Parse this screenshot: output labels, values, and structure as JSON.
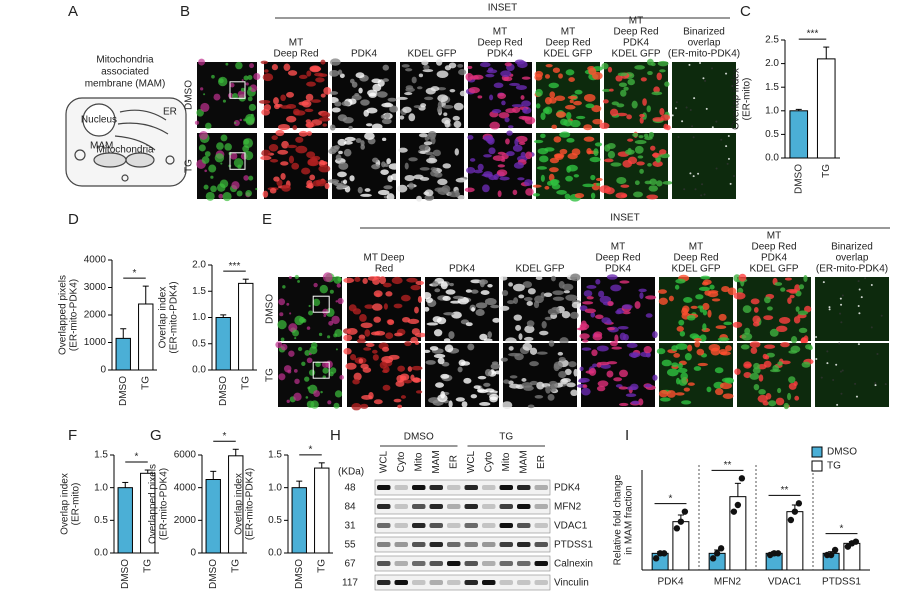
{
  "panels": {
    "a": {
      "label": "A",
      "title": [
        "Mitochondria",
        "associated",
        "membrane (MAM)"
      ],
      "nucleus": "Nucleus",
      "er": "ER",
      "mito": "Mitochondria",
      "mam": "MAM"
    },
    "b": {
      "label": "B",
      "header": "INSET",
      "rows": [
        "DMSO",
        "TG"
      ],
      "columns": [
        [
          {
            "text": "MT",
            "color": "#e8302a"
          },
          {
            "text": "Deep Red",
            "color": "#e8302a"
          }
        ],
        [
          {
            "text": "PDK4",
            "color": "#3a3aa8"
          }
        ],
        [
          {
            "text": "KDEL GFP",
            "color": "#2fae4a"
          }
        ],
        [
          {
            "text": "MT",
            "color": "#e8302a"
          },
          {
            "text": "Deep Red",
            "color": "#e8302a"
          },
          {
            "text": "PDK4",
            "color": "#3a3aa8"
          }
        ],
        [
          {
            "text": "MT",
            "color": "#e8302a"
          },
          {
            "text": "Deep Red",
            "color": "#e8302a"
          },
          {
            "text": "KDEL GFP",
            "color": "#2fae4a"
          }
        ],
        [
          {
            "text": "MT",
            "color": "#e8302a"
          },
          {
            "text": "Deep Red",
            "color": "#e8302a"
          },
          {
            "text": "PDK4",
            "color": "#3a3aa8"
          },
          {
            "text": "KDEL GFP",
            "color": "#2fae4a"
          }
        ],
        [
          {
            "text": "Binarized",
            "color": "#222222"
          },
          {
            "text": "overlap",
            "color": "#222222"
          },
          {
            "text": "(ER-mito-PDK4)",
            "color": "#222222"
          }
        ]
      ]
    },
    "e": {
      "label": "E",
      "header": "INSET",
      "rows": [
        "DMSO",
        "TG"
      ],
      "columns": [
        [
          {
            "text": "MT Deep",
            "color": "#e8302a"
          },
          {
            "text": "Red",
            "color": "#e8302a"
          }
        ],
        [
          {
            "text": "PDK4",
            "color": "#3a3aa8"
          }
        ],
        [
          {
            "text": "KDEL GFP",
            "color": "#2fae4a"
          }
        ],
        [
          {
            "text": "MT",
            "color": "#e8302a"
          },
          {
            "text": "Deep Red",
            "color": "#e8302a"
          },
          {
            "text": "PDK4",
            "color": "#3a3aa8"
          }
        ],
        [
          {
            "text": "MT",
            "color": "#e8302a"
          },
          {
            "text": "Deep Red",
            "color": "#e8302a"
          },
          {
            "text": "KDEL GFP",
            "color": "#2fae4a"
          }
        ],
        [
          {
            "text": "MT",
            "color": "#e8302a"
          },
          {
            "text": "Deep Red",
            "color": "#e8302a"
          },
          {
            "text": "PDK4",
            "color": "#3a3aa8"
          },
          {
            "text": "KDEL GFP",
            "color": "#2fae4a"
          }
        ],
        [
          {
            "text": "Binarized",
            "color": "#222222"
          },
          {
            "text": "overlap",
            "color": "#222222"
          },
          {
            "text": "(ER-mito-PDK4)",
            "color": "#222222"
          }
        ]
      ]
    },
    "h": {
      "label": "H",
      "groups": [
        "DMSO",
        "TG"
      ],
      "unit": "(KDa)",
      "lanes": [
        "WCL",
        "Cyto",
        "Mito",
        "MAM",
        "ER",
        "WCL",
        "Cyto",
        "Mito",
        "MAM",
        "ER"
      ],
      "rows": [
        {
          "mw": "48",
          "protein": "PDK4"
        },
        {
          "mw": "84",
          "protein": "MFN2"
        },
        {
          "mw": "31",
          "protein": "VDAC1"
        },
        {
          "mw": "55",
          "protein": "PTDSS1"
        },
        {
          "mw": "67",
          "protein": "Calnexin"
        },
        {
          "mw": "117",
          "protein": "Vinculin"
        }
      ]
    },
    "labels": {
      "c": "C",
      "d": "D",
      "f": "F",
      "g": "G",
      "i": "I"
    }
  },
  "chart_data": [
    {
      "type": "bar",
      "ylabel": [
        "Overlap index",
        "(ER-mito)"
      ],
      "categories": [
        "DMSO",
        "TG"
      ],
      "values": [
        1.0,
        2.1
      ],
      "errors": [
        0.03,
        0.25
      ],
      "colors": [
        "#4bafd6",
        "#ffffff"
      ],
      "ylim": [
        0,
        2.5
      ],
      "yticks": [
        {
          "value": 0,
          "label": "0.0"
        },
        0.5,
        {
          "value": 1,
          "label": "1.0"
        },
        1.5,
        {
          "value": 2,
          "label": "2.0"
        },
        2.5
      ],
      "significance": "***"
    },
    {
      "type": "bar",
      "ylabel": [
        "Overlapped pixels",
        "(ER-mito-PDK4)"
      ],
      "categories": [
        "DMSO",
        "TG"
      ],
      "values": [
        1150,
        2400
      ],
      "errors": [
        350,
        650
      ],
      "colors": [
        "#4bafd6",
        "#ffffff"
      ],
      "ylim": [
        0,
        4000
      ],
      "yticks": [
        0,
        1000,
        2000,
        3000,
        4000
      ],
      "significance": "*"
    },
    {
      "type": "bar",
      "ylabel": [
        "Overlap index",
        "(ER-mito-PDK4)"
      ],
      "categories": [
        "DMSO",
        "TG"
      ],
      "values": [
        1.0,
        1.65
      ],
      "errors": [
        0.05,
        0.08
      ],
      "colors": [
        "#4bafd6",
        "#ffffff"
      ],
      "ylim": [
        0,
        2
      ],
      "yticks": [
        {
          "value": 0,
          "label": "0.0"
        },
        0.5,
        {
          "value": 1,
          "label": "1.0"
        },
        1.5,
        {
          "value": 2,
          "label": "2.0"
        }
      ],
      "significance": "***"
    },
    {
      "type": "bar",
      "ylabel": [
        "Overlap index",
        "(ER-mito)"
      ],
      "categories": [
        "DMSO",
        "TG"
      ],
      "values": [
        1.0,
        1.22
      ],
      "errors": [
        0.08,
        0.05
      ],
      "colors": [
        "#4bafd6",
        "#ffffff"
      ],
      "ylim": [
        0,
        1.5
      ],
      "yticks": [
        {
          "value": 0,
          "label": "0.0"
        },
        0.5,
        {
          "value": 1,
          "label": "1.0"
        },
        1.5
      ],
      "significance": "*"
    },
    {
      "type": "bar",
      "ylabel": [
        "Overlapped pixels",
        "(ER-mito-PDK4)"
      ],
      "categories": [
        "DMSO",
        "TG"
      ],
      "values": [
        4500,
        5950
      ],
      "errors": [
        500,
        400
      ],
      "colors": [
        "#4bafd6",
        "#ffffff"
      ],
      "ylim": [
        0,
        6000
      ],
      "yticks": [
        0,
        2000,
        4000,
        6000
      ],
      "significance": "*"
    },
    {
      "type": "bar",
      "ylabel": [
        "Overlap index",
        "(ER-mito-PDK4)"
      ],
      "categories": [
        "DMSO",
        "TG"
      ],
      "values": [
        1.0,
        1.3
      ],
      "errors": [
        0.1,
        0.08
      ],
      "colors": [
        "#4bafd6",
        "#ffffff"
      ],
      "ylim": [
        0,
        1.5
      ],
      "yticks": [
        {
          "value": 0,
          "label": "0.0"
        },
        0.5,
        {
          "value": 1,
          "label": "1.0"
        },
        1.5
      ],
      "significance": "*"
    },
    {
      "type": "groupedbar",
      "ylabel": [
        "Relative fold change",
        "in MAM fraction"
      ],
      "categories": [
        "PDK4",
        "MFN2",
        "VDAC1",
        "PTDSS1"
      ],
      "ylim": [
        0,
        6
      ],
      "series": [
        {
          "name": "DMSO",
          "color": "#4bafd6",
          "values": [
            1.0,
            1.0,
            1.0,
            1.0
          ],
          "errors": [
            0.1,
            0.2,
            0.1,
            0.1
          ],
          "points": [
            [
              0.7,
              1.0,
              1.0
            ],
            [
              0.7,
              1.0,
              1.3
            ],
            [
              0.9,
              1.0,
              1.0
            ],
            [
              0.9,
              0.9,
              1.2
            ]
          ]
        },
        {
          "name": "TG",
          "color": "#ffffff",
          "values": [
            2.9,
            4.4,
            3.5,
            1.6
          ],
          "errors": [
            0.4,
            0.8,
            0.4,
            0.1
          ],
          "points": [
            [
              2.5,
              2.9,
              3.5
            ],
            [
              3.5,
              3.9,
              5.5
            ],
            [
              3.0,
              3.5,
              4.0
            ],
            [
              1.4,
              1.6,
              1.7
            ]
          ]
        }
      ],
      "significance": [
        "*",
        "**",
        "**",
        "*"
      ],
      "legend": "top-right"
    }
  ]
}
